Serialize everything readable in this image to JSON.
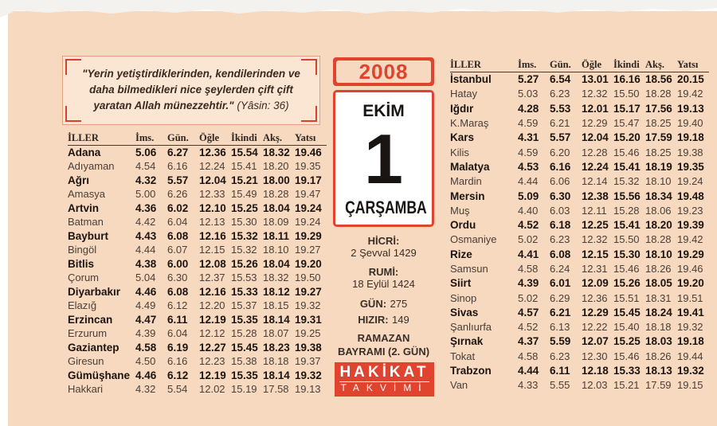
{
  "quote": {
    "text": "\"Yerin yetiştirdiklerinden, kendilerinden ve daha bilmedikleri nice şeylerden çift çift yaratan Allah münezzehtir.\"",
    "source": "(Yâsin: 36)"
  },
  "date": {
    "year": "2008",
    "month": "EKİM",
    "day": "1",
    "weekday": "ÇARŞAMBA"
  },
  "info": {
    "hijri": {
      "label": "HİCRİ:",
      "value": "2 Şevval 1429"
    },
    "rumi": {
      "label": "RUMİ:",
      "value": "18 Eylül 1424"
    },
    "day_of_year": {
      "label": "GÜN:",
      "value": "275"
    },
    "hizir": {
      "label": "HIZIR:",
      "value": "149"
    },
    "holiday": [
      "RAMAZAN",
      "BAYRAMI (2. GÜN)"
    ]
  },
  "brand": {
    "name": "HAKİKAT",
    "sub": "TAKVİMİ"
  },
  "left_table": {
    "headers": [
      "İLLER",
      "İms.",
      "Gün.",
      "Öğle",
      "İkindi",
      "Akş.",
      "Yatsı"
    ],
    "rows": [
      [
        "Adana",
        "5.06",
        "6.27",
        "12.36",
        "15.54",
        "18.32",
        "19.46"
      ],
      [
        "Adıyaman",
        "4.54",
        "6.16",
        "12.24",
        "15.41",
        "18.20",
        "19.35"
      ],
      [
        "Ağrı",
        "4.32",
        "5.57",
        "12.04",
        "15.21",
        "18.00",
        "19.17"
      ],
      [
        "Amasya",
        "5.00",
        "6.26",
        "12.33",
        "15.49",
        "18.28",
        "19.47"
      ],
      [
        "Artvin",
        "4.36",
        "6.02",
        "12.10",
        "15.25",
        "18.04",
        "19.24"
      ],
      [
        "Batman",
        "4.42",
        "6.04",
        "12.13",
        "15.30",
        "18.09",
        "19.24"
      ],
      [
        "Bayburt",
        "4.43",
        "6.08",
        "12.16",
        "15.32",
        "18.11",
        "19.29"
      ],
      [
        "Bingöl",
        "4.44",
        "6.07",
        "12.15",
        "15.32",
        "18.10",
        "19.27"
      ],
      [
        "Bitlis",
        "4.38",
        "6.00",
        "12.08",
        "15.26",
        "18.04",
        "19.20"
      ],
      [
        "Çorum",
        "5.04",
        "6.30",
        "12.37",
        "15.53",
        "18.32",
        "19.50"
      ],
      [
        "Diyarbakır",
        "4.46",
        "6.08",
        "12.16",
        "15.33",
        "18.12",
        "19.27"
      ],
      [
        "Elazığ",
        "4.49",
        "6.12",
        "12.20",
        "15.37",
        "18.15",
        "19.32"
      ],
      [
        "Erzincan",
        "4.47",
        "6.11",
        "12.19",
        "15.35",
        "18.14",
        "19.31"
      ],
      [
        "Erzurum",
        "4.39",
        "6.04",
        "12.12",
        "15.28",
        "18.07",
        "19.25"
      ],
      [
        "Gaziantep",
        "4.58",
        "6.19",
        "12.27",
        "15.45",
        "18.23",
        "19.38"
      ],
      [
        "Giresun",
        "4.50",
        "6.16",
        "12.23",
        "15.38",
        "18.18",
        "19.37"
      ],
      [
        "Gümüşhane",
        "4.46",
        "6.12",
        "12.19",
        "15.35",
        "18.14",
        "19.32"
      ],
      [
        "Hakkari",
        "4.32",
        "5.54",
        "12.02",
        "15.19",
        "17.58",
        "19.13"
      ]
    ]
  },
  "right_table": {
    "headers": [
      "İLLER",
      "İms.",
      "Gün.",
      "Öğle",
      "İkindi",
      "Akş.",
      "Yatsı"
    ],
    "rows": [
      [
        "İstanbul",
        "5.27",
        "6.54",
        "13.01",
        "16.16",
        "18.56",
        "20.15"
      ],
      [
        "Hatay",
        "5.03",
        "6.23",
        "12.32",
        "15.50",
        "18.28",
        "19.42"
      ],
      [
        "Iğdır",
        "4.28",
        "5.53",
        "12.01",
        "15.17",
        "17.56",
        "19.13"
      ],
      [
        "K.Maraş",
        "4.59",
        "6.21",
        "12.29",
        "15.47",
        "18.25",
        "19.40"
      ],
      [
        "Kars",
        "4.31",
        "5.57",
        "12.04",
        "15.20",
        "17.59",
        "19.18"
      ],
      [
        "Kilis",
        "4.59",
        "6.20",
        "12.28",
        "15.46",
        "18.25",
        "19.38"
      ],
      [
        "Malatya",
        "4.53",
        "6.16",
        "12.24",
        "15.41",
        "18.19",
        "19.35"
      ],
      [
        "Mardin",
        "4.44",
        "6.06",
        "12.14",
        "15.32",
        "18.10",
        "19.24"
      ],
      [
        "Mersin",
        "5.09",
        "6.30",
        "12.38",
        "15.56",
        "18.34",
        "19.48"
      ],
      [
        "Muş",
        "4.40",
        "6.03",
        "12.11",
        "15.28",
        "18.06",
        "19.23"
      ],
      [
        "Ordu",
        "4.52",
        "6.18",
        "12.25",
        "15.41",
        "18.20",
        "19.39"
      ],
      [
        "Osmaniye",
        "5.02",
        "6.23",
        "12.32",
        "15.50",
        "18.28",
        "19.42"
      ],
      [
        "Rize",
        "4.41",
        "6.08",
        "12.15",
        "15.30",
        "18.10",
        "19.29"
      ],
      [
        "Samsun",
        "4.58",
        "6.24",
        "12.31",
        "15.46",
        "18.26",
        "19.46"
      ],
      [
        "Siirt",
        "4.39",
        "6.01",
        "12.09",
        "15.26",
        "18.05",
        "19.20"
      ],
      [
        "Sinop",
        "5.02",
        "6.29",
        "12.36",
        "15.51",
        "18.31",
        "19.51"
      ],
      [
        "Sivas",
        "4.57",
        "6.21",
        "12.29",
        "15.45",
        "18.24",
        "19.41"
      ],
      [
        "Şanlıurfa",
        "4.52",
        "6.13",
        "12.22",
        "15.40",
        "18.18",
        "19.32"
      ],
      [
        "Şırnak",
        "4.37",
        "5.59",
        "12.07",
        "15.25",
        "18.03",
        "19.18"
      ],
      [
        "Tokat",
        "4.58",
        "6.23",
        "12.30",
        "15.46",
        "18.26",
        "19.44"
      ],
      [
        "Trabzon",
        "4.44",
        "6.11",
        "12.18",
        "15.33",
        "18.13",
        "19.32"
      ],
      [
        "Van",
        "4.33",
        "5.55",
        "12.03",
        "15.21",
        "17.59",
        "19.15"
      ]
    ]
  }
}
